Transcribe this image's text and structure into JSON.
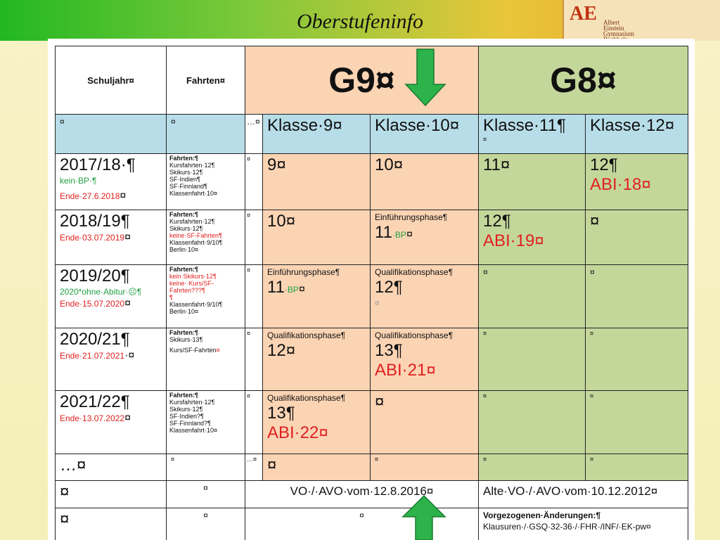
{
  "header": {
    "title": "Oberstufeninfo",
    "logo": {
      "mark": "AE",
      "lines": [
        "Albert",
        "Einstein",
        "Gymnasium",
        "Buchholz"
      ]
    }
  },
  "table": {
    "rows": [
      [
        [
          "Schuljahr¤"
        ],
        [
          "Fahrten¤"
        ],
        [
          "G9¤"
        ],
        [
          "G8¤"
        ]
      ],
      [
        [
          "¤"
        ],
        [
          "¤"
        ],
        [
          "…¤"
        ],
        [
          "Klasse·9¤"
        ],
        [
          "Klasse·10¤"
        ],
        [
          "Klasse·11¶",
          "¤"
        ],
        [
          "Klasse·12¤"
        ]
      ],
      [
        [
          "2017/18·¶",
          "kein·BP·¶",
          "Ende·27.6.2018",
          "¤"
        ],
        [
          "Fahrten:¶",
          "Kursfahrten·12¶",
          "Skikurs·12¶",
          "SF·Indien¶",
          "SF·Finnland¶",
          "Klassenfahrt·10¤"
        ],
        [
          "¤"
        ],
        [
          "9¤"
        ],
        [
          "10¤"
        ],
        [
          "11¤"
        ],
        [
          "12¶",
          "ABI·18¤"
        ]
      ],
      [
        [
          "2018/19¶",
          "Ende·03.07.2019",
          "¤"
        ],
        [
          "Fahrten:¶",
          "Kursfahrten·12¶",
          "Skikurs·12¶",
          "keine·SF-Fahrten¶",
          "Klassenfahrt·9/10¶",
          "Berlin·10¤"
        ],
        [
          "¤"
        ],
        [
          "10¤"
        ],
        [
          "Einführungsphase¶",
          "11",
          "·BP",
          "¤"
        ],
        [
          "12¶",
          "ABI·19¤"
        ],
        [
          "¤"
        ]
      ],
      [
        [
          "2019/20¶",
          "2020*ohne·Abitur·☹¶",
          "Ende·15.07.2020",
          "¤"
        ],
        [
          "Fahrten:¶",
          "kein·Skikurs·12¶",
          "keine··Kurs/SF-Fahrten???¶",
          "¶",
          "Klassenfahrt·9/10¶",
          "Berlin·10¤"
        ],
        [
          "¤"
        ],
        [
          "Einführungsphase¶",
          "11",
          "·BP",
          "¤"
        ],
        [
          "Qualifikationsphase¶",
          "12¶",
          "¤"
        ],
        [
          "¤"
        ],
        [
          "¤"
        ]
      ],
      [
        [
          "2020/21¶",
          "Ende·21.07.2021",
          "·¤"
        ],
        [
          "Fahrten:¶",
          "Skikurs·13¶",
          "Kurs/SF-Fahrten",
          "¤"
        ],
        [
          "¤"
        ],
        [
          "Qualifikationsphase¶",
          "12¤"
        ],
        [
          "Qualifikationsphase¶",
          "13¶",
          "ABI·21¤"
        ],
        [
          "¤"
        ],
        [
          "¤"
        ]
      ],
      [
        [
          "2021/22¶",
          "Ende·13.07.2022",
          "¤"
        ],
        [
          "Fahrten:¶",
          "Kursfahrten·12¶",
          "Skikurs·12¶",
          "SF·Indien?¶",
          "SF·Finnland?¶",
          "Klassenfahrt·10¤"
        ],
        [
          "¤"
        ],
        [
          "Qualifikationsphase¶",
          "13¶",
          "ABI·22¤"
        ],
        [
          "¤"
        ],
        [
          "¤"
        ],
        [
          "¤"
        ]
      ],
      [
        [
          "…¤"
        ],
        [
          "¤"
        ],
        [
          "…¤"
        ],
        [
          "¤"
        ],
        [
          "¤"
        ],
        [
          "¤"
        ],
        [
          "¤"
        ]
      ],
      [
        [
          "¤"
        ],
        [
          "¤"
        ],
        [
          "VO·/·AVO·vom·12.8.2016¤"
        ],
        [
          "Alte·VO·/·AVO·vom·10.12.2012¤"
        ]
      ],
      [
        [
          "¤"
        ],
        [
          "¤"
        ],
        [
          "¤"
        ],
        [
          "Vorgezogenen·Änderungen:¶",
          "Klausuren·/·GSQ·32-36·/·FHR·/INF/·EK-pw¤"
        ]
      ]
    ]
  }
}
